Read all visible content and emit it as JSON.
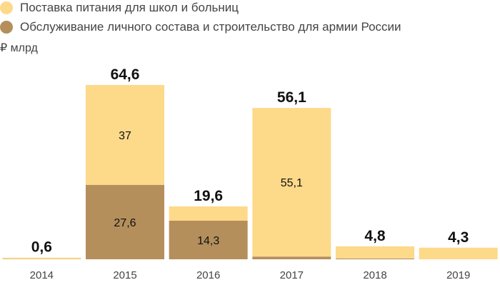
{
  "chart_data": {
    "type": "bar",
    "stacked": true,
    "unit_label": "₽ млрд",
    "categories": [
      "2014",
      "2015",
      "2016",
      "2017",
      "2018",
      "2019"
    ],
    "series": [
      {
        "name": "Обслуживание личного состава и строительство для армии России",
        "color": "#b48f5c",
        "values": [
          0.1,
          27.6,
          14.3,
          1.0,
          0.3,
          0.0
        ],
        "labels": [
          "",
          "27,6",
          "14,3",
          "",
          "",
          ""
        ]
      },
      {
        "name": "Поставка питания для школ и больниц",
        "color": "#fdd98a",
        "values": [
          0.5,
          37,
          5.3,
          55.1,
          4.5,
          4.3
        ],
        "labels": [
          "",
          "37",
          "",
          "55,1",
          "",
          ""
        ]
      }
    ],
    "totals": [
      "0,6",
      "64,6",
      "19,6",
      "56,1",
      "4,8",
      "4,3"
    ],
    "totals_values": [
      0.6,
      64.6,
      19.6,
      56.1,
      4.8,
      4.3
    ],
    "ylim": [
      0,
      64.6
    ],
    "legend_position": "top-left",
    "grid": false
  }
}
